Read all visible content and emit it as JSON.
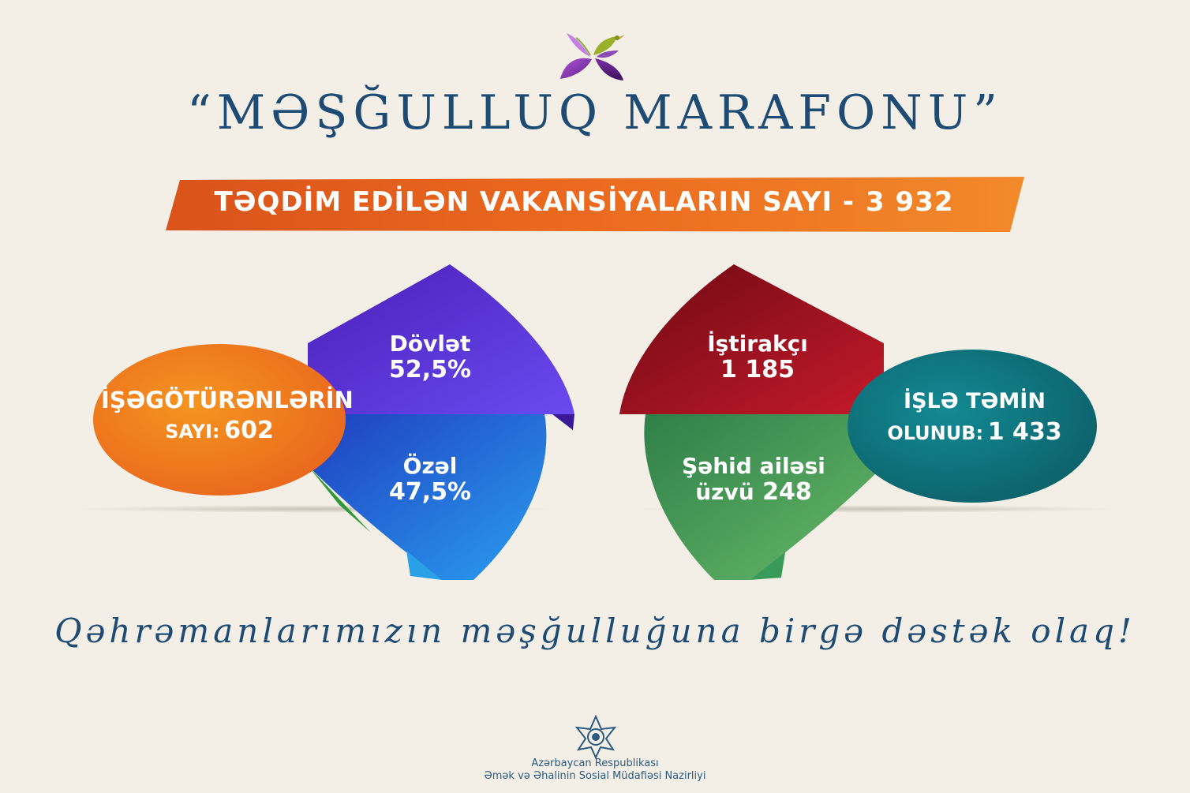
{
  "title": "“MƏŞĞULLUQ MARAFONU”",
  "banner": {
    "label": "TƏQDİM EDİLƏN VAKANSİYALARIN SAYI -",
    "value": "3 932"
  },
  "left_group": {
    "circle_line1": "İŞƏGÖTÜRƏNLƏRİN",
    "circle_line2_label": "SAYI:",
    "circle_line2_value": "602",
    "top_label": "Dövlət",
    "top_value": "52,5%",
    "bottom_label": "Özəl",
    "bottom_value": "47,5%"
  },
  "right_group": {
    "top_label": "İştirakçı",
    "top_value": "1 185",
    "bottom_label": "Şəhid ailəsi",
    "bottom_value_label": "üzvü",
    "bottom_value": "248",
    "circle_line1": "İŞLƏ TƏMİN",
    "circle_line2_label": "OLUNUB:",
    "circle_line2_value": "1 433"
  },
  "slogan": "Qəhrəmanlarımızın məşğulluğuna birgə dəstək olaq!",
  "footer": {
    "line1": "Azərbaycan Respublikası",
    "line2": "Əmək və Əhalinin Sosial Müdafiəsi Nazirliyi"
  },
  "colors": {
    "background": "#f3efe6",
    "title": "#1d4b73",
    "banner": "#e8641e",
    "orange_circle": "#ef7d1e",
    "teal_circle": "#0f6e78",
    "purple": "#5a34d0",
    "blue": "#1c5fd6",
    "crimson": "#9c0e1e",
    "green": "#3f8a50"
  },
  "icons": {
    "logo": "iris-bird-logo",
    "emblem": "ministry-star-emblem"
  }
}
